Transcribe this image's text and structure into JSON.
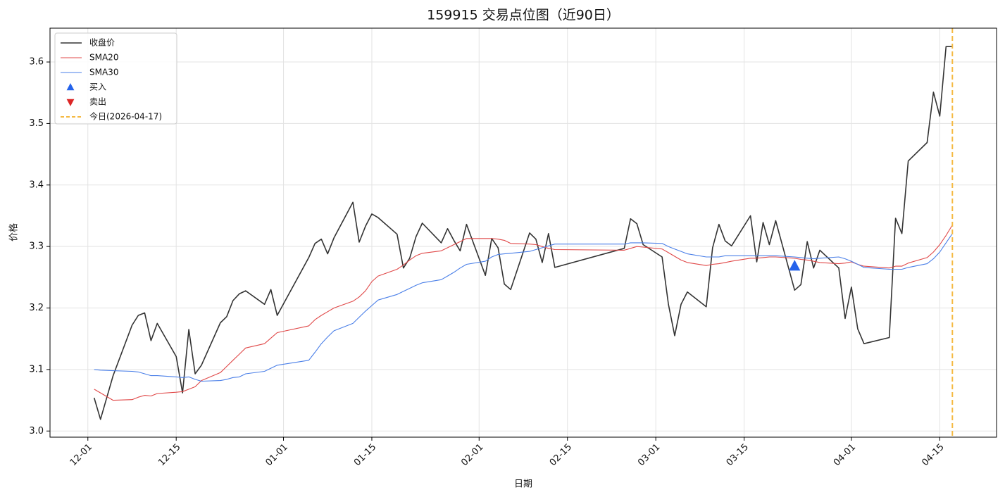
{
  "chart_data": {
    "type": "line",
    "title": "159915 交易点位图（近90日）",
    "x_label": "日期",
    "y_label": "价格",
    "x": [
      "12-02",
      "12-03",
      "12-05",
      "12-08",
      "12-09",
      "12-10",
      "12-11",
      "12-12",
      "12-15",
      "12-16",
      "12-17",
      "12-18",
      "12-19",
      "12-22",
      "12-23",
      "12-24",
      "12-25",
      "12-26",
      "12-29",
      "12-30",
      "12-31",
      "01-05",
      "01-06",
      "01-07",
      "01-08",
      "01-09",
      "01-12",
      "01-13",
      "01-14",
      "01-15",
      "01-16",
      "01-19",
      "01-20",
      "01-21",
      "01-22",
      "01-23",
      "01-26",
      "01-27",
      "01-28",
      "01-29",
      "01-30",
      "02-02",
      "02-03",
      "02-04",
      "02-05",
      "02-06",
      "02-09",
      "02-10",
      "02-11",
      "02-12",
      "02-13",
      "02-24",
      "02-25",
      "02-26",
      "02-27",
      "03-02",
      "03-03",
      "03-04",
      "03-05",
      "03-06",
      "03-09",
      "03-10",
      "03-11",
      "03-12",
      "03-13",
      "03-16",
      "03-17",
      "03-18",
      "03-19",
      "03-20",
      "03-23",
      "03-24",
      "03-25",
      "03-26",
      "03-27",
      "03-30",
      "03-31",
      "04-01",
      "04-02",
      "04-03",
      "04-07",
      "04-08",
      "04-09",
      "04-10",
      "04-13",
      "04-14",
      "04-15",
      "04-16",
      "04-17"
    ],
    "series": [
      {
        "name": "收盘价",
        "color": "#333333",
        "width": 1.6,
        "values": [
          3.054,
          3.019,
          3.09,
          3.172,
          3.188,
          3.192,
          3.147,
          3.175,
          3.121,
          3.062,
          3.165,
          3.093,
          3.107,
          3.176,
          3.186,
          3.212,
          3.223,
          3.228,
          3.206,
          3.23,
          3.188,
          3.282,
          3.305,
          3.312,
          3.288,
          3.314,
          3.372,
          3.307,
          3.333,
          3.353,
          3.347,
          3.32,
          3.265,
          3.281,
          3.316,
          3.338,
          3.306,
          3.329,
          3.31,
          3.293,
          3.336,
          3.253,
          3.313,
          3.298,
          3.239,
          3.23,
          3.322,
          3.312,
          3.274,
          3.321,
          3.266,
          3.297,
          3.345,
          3.337,
          3.303,
          3.283,
          3.206,
          3.155,
          3.206,
          3.226,
          3.202,
          3.298,
          3.336,
          3.309,
          3.301,
          3.35,
          3.275,
          3.339,
          3.303,
          3.342,
          3.229,
          3.238,
          3.308,
          3.265,
          3.294,
          3.265,
          3.183,
          3.234,
          3.166,
          3.142,
          3.152,
          3.346,
          3.321,
          3.439,
          3.469,
          3.551,
          3.512,
          3.625,
          3.625
        ]
      },
      {
        "name": "SMA20",
        "color": "#e04848",
        "width": 1.1,
        "values": [
          3.068,
          3.062,
          3.05,
          3.051,
          3.055,
          3.058,
          3.057,
          3.061,
          3.063,
          3.064,
          3.068,
          3.072,
          3.082,
          3.095,
          3.105,
          3.115,
          3.125,
          3.135,
          3.142,
          3.151,
          3.16,
          3.171,
          3.181,
          3.188,
          3.194,
          3.2,
          3.211,
          3.218,
          3.228,
          3.243,
          3.252,
          3.263,
          3.27,
          3.278,
          3.285,
          3.289,
          3.293,
          3.298,
          3.303,
          3.308,
          3.313,
          3.313,
          3.313,
          3.312,
          3.31,
          3.305,
          3.304,
          3.303,
          3.3,
          3.297,
          3.295,
          3.294,
          3.297,
          3.3,
          3.299,
          3.296,
          3.29,
          3.284,
          3.278,
          3.274,
          3.269,
          3.271,
          3.272,
          3.274,
          3.276,
          3.281,
          3.281,
          3.282,
          3.283,
          3.283,
          3.281,
          3.279,
          3.278,
          3.276,
          3.274,
          3.272,
          3.273,
          3.275,
          3.271,
          3.268,
          3.265,
          3.268,
          3.268,
          3.273,
          3.282,
          3.291,
          3.303,
          3.318,
          3.335
        ]
      },
      {
        "name": "SMA30",
        "color": "#4a7fe8",
        "width": 1.1,
        "values": [
          3.1,
          3.099,
          3.098,
          3.097,
          3.096,
          3.093,
          3.09,
          3.09,
          3.088,
          3.087,
          3.088,
          3.084,
          3.081,
          3.082,
          3.084,
          3.087,
          3.088,
          3.093,
          3.097,
          3.102,
          3.107,
          3.115,
          3.128,
          3.142,
          3.153,
          3.163,
          3.175,
          3.185,
          3.195,
          3.204,
          3.213,
          3.222,
          3.227,
          3.232,
          3.237,
          3.241,
          3.246,
          3.252,
          3.258,
          3.265,
          3.271,
          3.276,
          3.283,
          3.287,
          3.288,
          3.289,
          3.292,
          3.295,
          3.298,
          3.301,
          3.304,
          3.304,
          3.306,
          3.306,
          3.306,
          3.305,
          3.3,
          3.296,
          3.292,
          3.288,
          3.283,
          3.283,
          3.283,
          3.285,
          3.285,
          3.285,
          3.285,
          3.285,
          3.285,
          3.285,
          3.283,
          3.282,
          3.281,
          3.28,
          3.281,
          3.283,
          3.28,
          3.276,
          3.271,
          3.266,
          3.263,
          3.263,
          3.263,
          3.266,
          3.272,
          3.28,
          3.291,
          3.306,
          3.321
        ]
      }
    ],
    "markers": [
      {
        "name": "买入",
        "color": "#2563eb",
        "shape": "up",
        "x": [
          "03-23"
        ],
        "values": [
          3.268
        ]
      },
      {
        "name": "卖出",
        "color": "#dc2626",
        "shape": "down",
        "x": [],
        "values": []
      }
    ],
    "vline": {
      "name": "今日(2026-04-17)",
      "x": "04-17",
      "color": "#f5b942"
    },
    "xlim": [
      "11-25",
      "04-24"
    ],
    "xticks": [
      "12-01",
      "12-15",
      "01-01",
      "01-15",
      "02-01",
      "02-15",
      "03-01",
      "03-15",
      "04-01",
      "04-15"
    ],
    "ylim": [
      2.99,
      3.655
    ],
    "yticks": [
      {
        "value": 3,
        "label": "3.0"
      },
      3.1,
      3.2,
      3.3,
      3.4,
      3.5,
      3.6
    ],
    "grid": true,
    "legend": "upper-left"
  }
}
